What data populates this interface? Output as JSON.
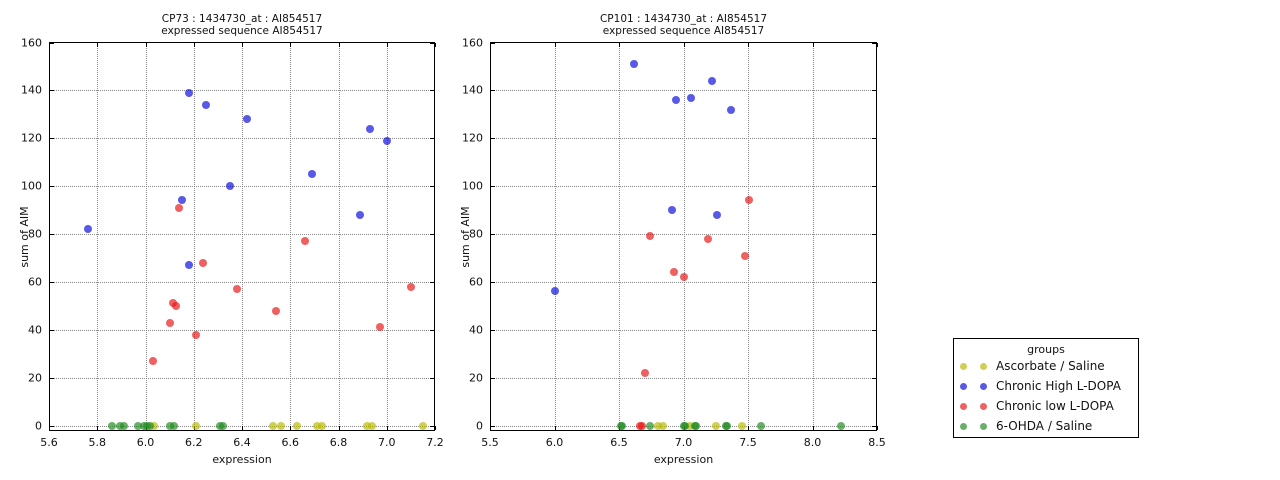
{
  "figure": {
    "background": "#ffffff",
    "text_color": "#111111",
    "grid_color": "#8a8a8a"
  },
  "legend": {
    "title": "groups",
    "position": "right",
    "marker_alpha": 0.68,
    "entries": [
      {
        "label": "Ascorbate / Saline",
        "color": "#b8b800"
      },
      {
        "label": "Chronic High L-DOPA",
        "color": "#0a0adc"
      },
      {
        "label": "Chronic low L-DOPA",
        "color": "#e81414"
      },
      {
        "label": "6-OHDA / Saline",
        "color": "#218a21"
      }
    ]
  },
  "chart_data": [
    {
      "type": "scatter",
      "title_line1": "CP73 : 1434730_at : AI854517",
      "title_line2": "expressed sequence AI854517",
      "xlabel": "expression",
      "ylabel": "sum of AIM",
      "xlim": [
        5.6,
        7.2
      ],
      "ylim": [
        0,
        160
      ],
      "grid": true,
      "xticks": {
        "values": [
          5.6,
          5.8,
          6.0,
          6.2,
          6.4,
          6.6,
          6.8,
          7.0,
          7.2
        ],
        "labels": [
          "5.6",
          "5.8",
          "6.0",
          "6.2",
          "6.4",
          "6.6",
          "6.8",
          "7.0",
          "7.2"
        ]
      },
      "yticks": {
        "values": [
          0,
          20,
          40,
          60,
          80,
          100,
          120,
          140,
          160
        ],
        "labels": [
          "0",
          "20",
          "40",
          "60",
          "80",
          "100",
          "120",
          "140",
          "160"
        ]
      },
      "series": [
        {
          "group": "Ascorbate / Saline",
          "points": [
            [
              6.035,
              0
            ],
            [
              6.21,
              0
            ],
            [
              6.53,
              0
            ],
            [
              6.56,
              0
            ],
            [
              6.63,
              0
            ],
            [
              6.71,
              0
            ],
            [
              6.73,
              0
            ],
            [
              6.92,
              0
            ],
            [
              6.94,
              0
            ],
            [
              7.15,
              0
            ]
          ]
        },
        {
          "group": "Chronic High L-DOPA",
          "points": [
            [
              5.76,
              82
            ],
            [
              6.15,
              94
            ],
            [
              6.18,
              139
            ],
            [
              6.18,
              67
            ],
            [
              6.25,
              134
            ],
            [
              6.35,
              100
            ],
            [
              6.42,
              128
            ],
            [
              6.69,
              105
            ],
            [
              6.89,
              88
            ],
            [
              6.93,
              124
            ],
            [
              7.0,
              119
            ]
          ]
        },
        {
          "group": "Chronic low L-DOPA",
          "points": [
            [
              6.03,
              27
            ],
            [
              6.1,
              43
            ],
            [
              6.115,
              51
            ],
            [
              6.125,
              50
            ],
            [
              6.14,
              91
            ],
            [
              6.21,
              38
            ],
            [
              6.24,
              68
            ],
            [
              6.38,
              57
            ],
            [
              6.54,
              48
            ],
            [
              6.66,
              77
            ],
            [
              6.97,
              41
            ],
            [
              7.1,
              58
            ]
          ]
        },
        {
          "group": "6-OHDA / Saline",
          "points": [
            [
              5.86,
              0
            ],
            [
              5.895,
              0
            ],
            [
              5.91,
              0
            ],
            [
              5.97,
              0
            ],
            [
              5.995,
              0
            ],
            [
              6.005,
              0
            ],
            [
              6.02,
              0
            ],
            [
              6.1,
              0
            ],
            [
              6.12,
              0
            ],
            [
              6.31,
              0
            ],
            [
              6.32,
              0
            ]
          ]
        }
      ]
    },
    {
      "type": "scatter",
      "title_line1": "CP101 : 1434730_at : AI854517",
      "title_line2": "expressed sequence AI854517",
      "xlabel": "expression",
      "ylabel": "sum of AIM",
      "xlim": [
        5.5,
        8.5
      ],
      "ylim": [
        0,
        160
      ],
      "grid": true,
      "xticks": {
        "values": [
          5.5,
          6.0,
          6.5,
          7.0,
          7.5,
          8.0,
          8.5
        ],
        "labels": [
          "5.5",
          "6.0",
          "6.5",
          "7.0",
          "7.5",
          "8.0",
          "8.5"
        ]
      },
      "yticks": {
        "values": [
          0,
          20,
          40,
          60,
          80,
          100,
          120,
          140,
          160
        ],
        "labels": [
          "0",
          "20",
          "40",
          "60",
          "80",
          "100",
          "120",
          "140",
          "160"
        ]
      },
      "series": [
        {
          "group": "Ascorbate / Saline",
          "points": [
            [
              6.8,
              0
            ],
            [
              6.84,
              0
            ],
            [
              7.05,
              0
            ],
            [
              7.25,
              0
            ],
            [
              7.45,
              0
            ]
          ]
        },
        {
          "group": "Chronic High L-DOPA",
          "points": [
            [
              6.0,
              56
            ],
            [
              6.62,
              151
            ],
            [
              6.91,
              90
            ],
            [
              6.94,
              136
            ],
            [
              7.06,
              137
            ],
            [
              7.22,
              144
            ],
            [
              7.26,
              88
            ],
            [
              7.37,
              132
            ]
          ]
        },
        {
          "group": "Chronic low L-DOPA",
          "points": [
            [
              6.665,
              0
            ],
            [
              6.675,
              0
            ],
            [
              6.7,
              22
            ],
            [
              6.74,
              79
            ],
            [
              6.93,
              64
            ],
            [
              7.0,
              62
            ],
            [
              7.19,
              78
            ],
            [
              7.48,
              71
            ],
            [
              7.51,
              94
            ]
          ]
        },
        {
          "group": "6-OHDA / Saline",
          "points": [
            [
              6.515,
              0
            ],
            [
              6.525,
              0
            ],
            [
              6.74,
              0
            ],
            [
              7.005,
              0
            ],
            [
              7.015,
              0
            ],
            [
              7.09,
              0
            ],
            [
              7.1,
              0
            ],
            [
              7.33,
              0
            ],
            [
              7.34,
              0
            ],
            [
              7.6,
              0
            ],
            [
              8.22,
              0
            ]
          ]
        }
      ]
    }
  ]
}
